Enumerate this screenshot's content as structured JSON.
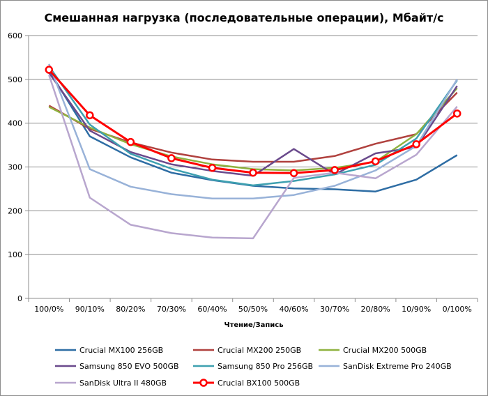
{
  "chart_data": {
    "type": "line",
    "title": "Смешанная нагрузка (последовательные операции), Мбайт/с",
    "xlabel": "Чтение/Запись",
    "ylabel": "",
    "categories": [
      "100/0%",
      "90/10%",
      "80/20%",
      "70/30%",
      "60/40%",
      "50/50%",
      "40/60%",
      "30/70%",
      "20/80%",
      "10/90%",
      "0/100%"
    ],
    "ylim": [
      0,
      600
    ],
    "yticks": [
      0,
      100,
      200,
      300,
      400,
      500,
      600
    ],
    "grid": true,
    "legend_position": "bottom",
    "series": [
      {
        "name": "Crucial MX100 256GB",
        "color": "#2e6da4",
        "marker": false,
        "values": [
          520,
          370,
          322,
          287,
          270,
          257,
          251,
          249,
          244,
          271,
          327
        ]
      },
      {
        "name": "Crucial MX200 250GB",
        "color": "#b0413e",
        "marker": false,
        "values": [
          440,
          387,
          356,
          333,
          317,
          312,
          312,
          325,
          353,
          375,
          470
        ]
      },
      {
        "name": "Crucial MX200 500GB",
        "color": "#8fb23f",
        "marker": false,
        "values": [
          437,
          390,
          352,
          324,
          306,
          295,
          292,
          298,
          312,
          375,
          480
        ]
      },
      {
        "name": "Samsung 850 EVO 500GB",
        "color": "#6a4a8c",
        "marker": false,
        "values": [
          515,
          383,
          334,
          306,
          291,
          280,
          341,
          283,
          331,
          345,
          485
        ]
      },
      {
        "name": "Samsung 850 Pro 256GB",
        "color": "#3ea0b0",
        "marker": false,
        "values": [
          530,
          397,
          330,
          296,
          271,
          258,
          268,
          283,
          305,
          365,
          498
        ]
      },
      {
        "name": "SanDisk Extreme Pro 240GB",
        "color": "#98b2d8",
        "marker": false,
        "values": [
          535,
          295,
          255,
          238,
          228,
          228,
          236,
          257,
          292,
          348,
          500
        ]
      },
      {
        "name": "SanDisk Ultra II 480GB",
        "color": "#b8a6ce",
        "marker": false,
        "values": [
          510,
          230,
          168,
          149,
          139,
          137,
          275,
          287,
          274,
          328,
          438
        ]
      },
      {
        "name": "Crucial BX100 500GB",
        "color": "#ff0000",
        "marker": true,
        "values": [
          522,
          418,
          357,
          320,
          298,
          287,
          286,
          293,
          313,
          352,
          422
        ]
      }
    ]
  }
}
